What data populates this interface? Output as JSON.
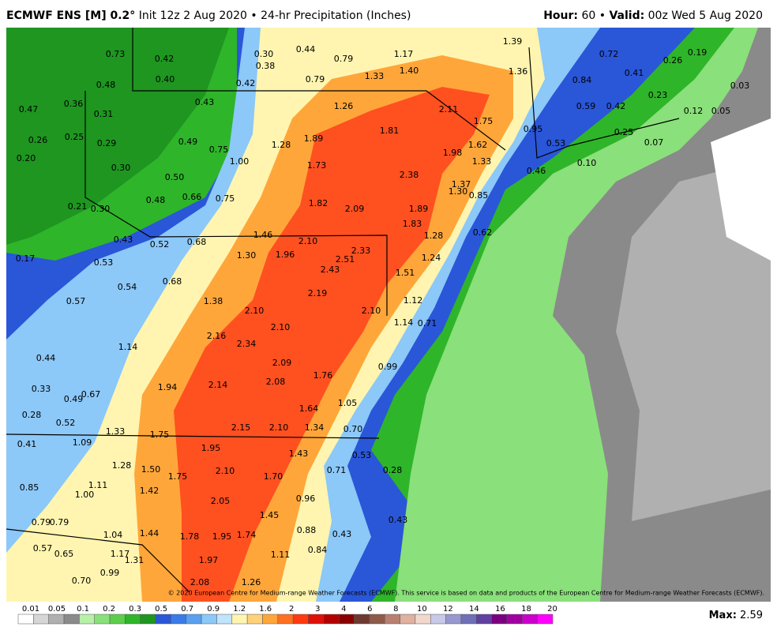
{
  "header": {
    "title_bold": "ECMWF ENS [M] 0.2°",
    "title_rest": "Init 12z 2 Aug 2020 • 24-hr Precipitation (Inches)",
    "hour_label": "Hour:",
    "hour_value": "60",
    "separator": "•",
    "valid_label": "Valid:",
    "valid_value": "00z Wed 5 Aug 2020"
  },
  "map": {
    "labels": [
      "0.73",
      "0.42",
      "0.30",
      "0.44",
      "0.79",
      "1.17",
      "1.39",
      "0.72",
      "0.26",
      "0.19",
      "0.38",
      "1.40",
      "1.36",
      "0.41",
      "0.84",
      "0.48",
      "0.40",
      "0.42",
      "0.79",
      "1.33",
      "0.03",
      "0.47",
      "0.36",
      "0.43",
      "1.26",
      "2.11",
      "0.59",
      "0.42",
      "0.23",
      "0.12",
      "0.05",
      "0.31",
      "1.75",
      "0.95",
      "0.26",
      "0.25",
      "0.29",
      "0.49",
      "0.75",
      "1.28",
      "1.89",
      "1.81",
      "1.62",
      "0.53",
      "0.25",
      "0.07",
      "0.20",
      "1.00",
      "1.73",
      "1.98",
      "1.33",
      "0.10",
      "0.30",
      "0.50",
      "2.38",
      "1.37",
      "0.46",
      "0.48",
      "0.66",
      "0.75",
      "1.82",
      "2.09",
      "1.89",
      "1.30",
      "0.85",
      "0.21",
      "0.30",
      "1.83",
      "1.28",
      "0.62",
      "0.43",
      "0.52",
      "0.68",
      "1.46",
      "2.10",
      "1.24",
      "0.17",
      "0.53",
      "1.30",
      "1.96",
      "2.33",
      "2.51",
      "1.51",
      "2.43",
      "0.68",
      "0.54",
      "0.57",
      "1.38",
      "2.19",
      "1.12",
      "2.10",
      "2.10",
      "1.14",
      "0.71",
      "2.10",
      "2.16",
      "2.34",
      "1.14",
      "0.44",
      "2.09",
      "0.99",
      "1.76",
      "2.08",
      "1.94",
      "2.14",
      "0.33",
      "0.67",
      "0.49",
      "1.05",
      "0.28",
      "1.64",
      "0.52",
      "2.15",
      "2.10",
      "1.34",
      "0.70",
      "1.33",
      "1.75",
      "1.09",
      "0.41",
      "1.95",
      "1.43",
      "0.53",
      "1.28",
      "1.50",
      "1.75",
      "2.10",
      "1.70",
      "0.71",
      "0.28",
      "0.85",
      "1.11",
      "1.42",
      "1.00",
      "2.05",
      "0.96",
      "0.79",
      "0.79",
      "1.45",
      "0.43",
      "1.04",
      "1.44",
      "1.78",
      "1.95",
      "1.74",
      "0.88",
      "0.43",
      "0.57",
      "0.65",
      "1.17",
      "1.31",
      "0.84",
      "1.11",
      "1.97",
      "0.99",
      "0.70",
      "2.08",
      "1.26"
    ],
    "copyright": "© 2020 European Centre for Medium-range Weather Forecasts (ECMWF). This service is based on data and products of the European Centre for Medium-range Weather Forecasts (ECMWF)."
  },
  "colorbar": {
    "labels": [
      "0.01",
      "0.05",
      "0.1",
      "0.2",
      "0.3",
      "0.5",
      "0.7",
      "0.9",
      "1.2",
      "1.6",
      "2",
      "3",
      "4",
      "6",
      "8",
      "10",
      "12",
      "14",
      "16",
      "18",
      "20"
    ],
    "colors": [
      "#ffffff",
      "#d6d6d6",
      "#b0b0b0",
      "#8a8a8a",
      "#b8f0a8",
      "#8ae07a",
      "#5cce4c",
      "#2fb52a",
      "#1e9620",
      "#2a56d8",
      "#3a7be8",
      "#5aa0f0",
      "#8cc8f8",
      "#c0e4fc",
      "#fff5b0",
      "#ffd27a",
      "#ffa63a",
      "#ff7020",
      "#ff3a10",
      "#e01008",
      "#b40000",
      "#8a0000",
      "#6e3a30",
      "#8e5a4a",
      "#b88070",
      "#e0b0a0",
      "#f2d8cc",
      "#c8c8e8",
      "#9898d0",
      "#7070b8",
      "#6040a0",
      "#7a0080",
      "#a000a0",
      "#cc00cc",
      "#ff00ff"
    ]
  },
  "footer": {
    "max_label": "Max:",
    "max_value": "2.59"
  }
}
